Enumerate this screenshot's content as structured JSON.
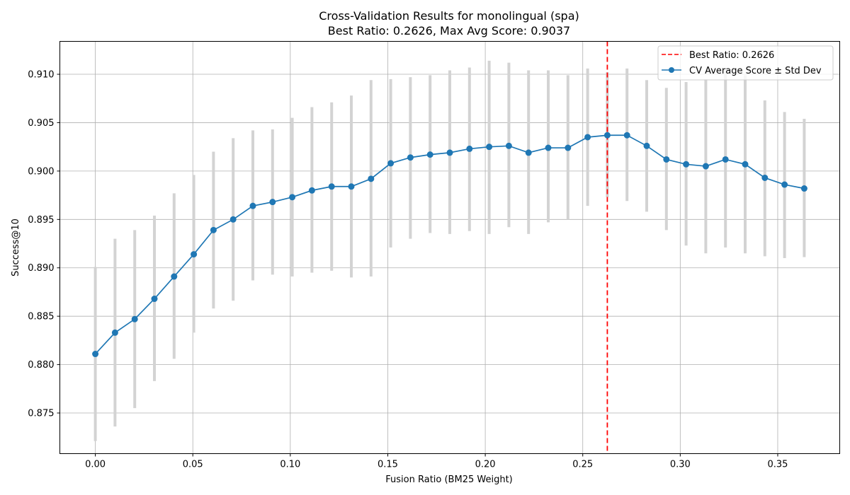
{
  "chart_data": {
    "type": "line",
    "title": "Cross-Validation Results for monolingual (spa)",
    "subtitle": "Best Ratio: 0.2626, Max Avg Score: 0.9037",
    "xlabel": "Fusion Ratio (BM25 Weight)",
    "ylabel": "Success@10",
    "xlim": [
      -0.0182,
      0.3818
    ],
    "ylim": [
      0.8708,
      0.9134
    ],
    "xticks": [
      0.0,
      0.05,
      0.1,
      0.15,
      0.2,
      0.25,
      0.3,
      0.35
    ],
    "xtick_labels": [
      "0.00",
      "0.05",
      "0.10",
      "0.15",
      "0.20",
      "0.25",
      "0.30",
      "0.35"
    ],
    "yticks": [
      0.875,
      0.88,
      0.885,
      0.89,
      0.895,
      0.9,
      0.905,
      0.91
    ],
    "ytick_labels": [
      "0.875",
      "0.880",
      "0.885",
      "0.890",
      "0.895",
      "0.900",
      "0.905",
      "0.910"
    ],
    "grid": true,
    "legend_position": "top-right",
    "best_ratio": 0.2626,
    "legend": {
      "best_ratio_label": "Best Ratio: 0.2626",
      "series_label": "CV Average Score ± Std Dev"
    },
    "colors": {
      "line": "#1f77b4",
      "errorbar": "#d3d3d3",
      "best_line": "#ff0000",
      "grid": "#b0b0b0"
    },
    "series": [
      {
        "name": "CV Average Score ± Std Dev",
        "x": [
          0.0,
          0.0101,
          0.0202,
          0.0303,
          0.0404,
          0.0505,
          0.0606,
          0.0707,
          0.0808,
          0.0909,
          0.101,
          0.1111,
          0.1212,
          0.1313,
          0.1414,
          0.1515,
          0.1616,
          0.1717,
          0.1818,
          0.1919,
          0.202,
          0.2121,
          0.2222,
          0.2323,
          0.2424,
          0.2525,
          0.2626,
          0.2727,
          0.2828,
          0.2929,
          0.303,
          0.3131,
          0.3232,
          0.3333,
          0.3434,
          0.3535,
          0.3636
        ],
        "y": [
          0.8811,
          0.8833,
          0.8847,
          0.8868,
          0.8891,
          0.8914,
          0.8939,
          0.895,
          0.8964,
          0.8968,
          0.8973,
          0.898,
          0.8984,
          0.8984,
          0.8992,
          0.9008,
          0.9014,
          0.9017,
          0.9019,
          0.9023,
          0.9025,
          0.9026,
          0.9019,
          0.9024,
          0.9024,
          0.9035,
          0.9037,
          0.9037,
          0.9026,
          0.9012,
          0.9007,
          0.9005,
          0.9012,
          0.9007,
          0.8993,
          0.8986,
          0.8982
        ],
        "err_low": [
          0.8721,
          0.8736,
          0.8755,
          0.8783,
          0.8806,
          0.8833,
          0.8858,
          0.8866,
          0.8887,
          0.8893,
          0.8891,
          0.8895,
          0.8897,
          0.889,
          0.8891,
          0.8921,
          0.893,
          0.8936,
          0.8935,
          0.8938,
          0.8935,
          0.8942,
          0.8935,
          0.8947,
          0.895,
          0.8964,
          0.8973,
          0.8969,
          0.8958,
          0.8939,
          0.8923,
          0.8915,
          0.8921,
          0.8915,
          0.8912,
          0.891,
          0.8911
        ],
        "err_high": [
          0.8901,
          0.893,
          0.8939,
          0.8954,
          0.8977,
          0.8996,
          0.902,
          0.9034,
          0.9042,
          0.9043,
          0.9055,
          0.9066,
          0.9071,
          0.9078,
          0.9094,
          0.9095,
          0.9097,
          0.9099,
          0.9104,
          0.9107,
          0.9114,
          0.9112,
          0.9104,
          0.9104,
          0.9099,
          0.9106,
          0.9102,
          0.9106,
          0.9094,
          0.9086,
          0.9092,
          0.9095,
          0.9103,
          0.9099,
          0.9073,
          0.9061,
          0.9054
        ]
      }
    ]
  }
}
